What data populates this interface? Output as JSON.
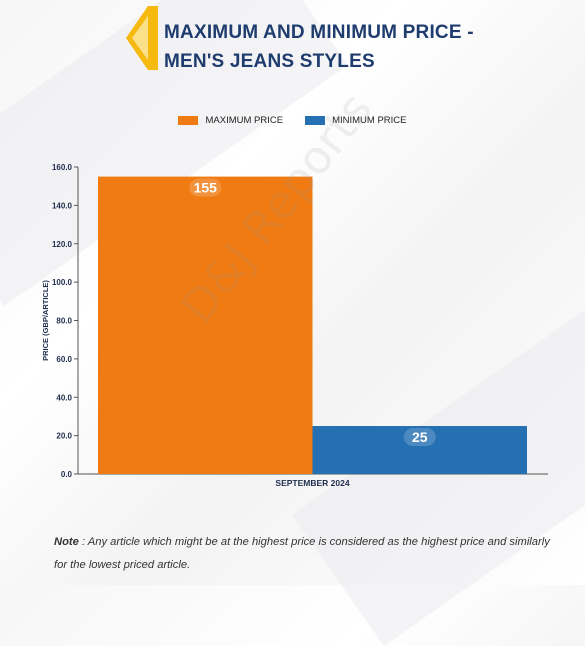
{
  "header": {
    "title_line1": "MAXIMUM AND MINIMUM PRICE -",
    "title_line2": "MEN'S JEANS STYLES"
  },
  "note": {
    "label": "Note",
    "text": ": Any article which might be at the highest price is considered as the highest price and similarly for the lowest priced article."
  },
  "watermark": "D&J Reports",
  "chart_data": {
    "type": "bar",
    "title": "MAXIMUM AND MINIMUM PRICE - MEN'S JEANS STYLES",
    "categories": [
      "SEPTEMBER 2024"
    ],
    "series": [
      {
        "name": "MAXIMUM PRICE",
        "values": [
          155
        ],
        "color": "#f07b12"
      },
      {
        "name": "MINIMUM PRICE",
        "values": [
          25
        ],
        "color": "#2470b3"
      }
    ],
    "xlabel": "",
    "ylabel": "PRICE (GBP/ARTICLE)",
    "ylim": [
      0,
      160
    ],
    "yticks": [
      "0.0",
      "20.0",
      "40.0",
      "60.0",
      "80.0",
      "100.0",
      "120.0",
      "140.0",
      "160.0"
    ],
    "data_labels": [
      "155",
      "25"
    ],
    "legend_position": "top-center",
    "grid": false
  }
}
